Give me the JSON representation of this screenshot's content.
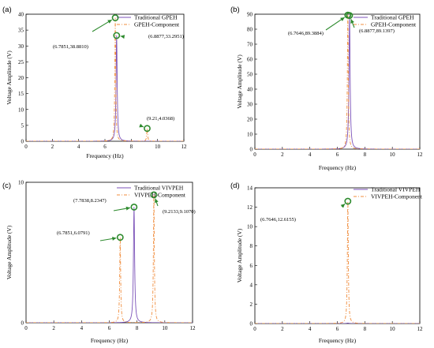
{
  "colors": {
    "traditional": "#7b52b8",
    "component": "#f08c3c",
    "marker": "#2d8a2d",
    "axis": "#000000"
  },
  "chart_data": [
    {
      "type": "line",
      "panel_label": "(a)",
      "xlabel": "Frequency (Hz)",
      "ylabel": "Voltage Amplitude (V)",
      "xlim": [
        0,
        12
      ],
      "ylim": [
        0,
        40
      ],
      "xticks": [
        0,
        2,
        4,
        6,
        8,
        10,
        12
      ],
      "yticks": [
        0,
        5,
        10,
        15,
        20,
        25,
        30,
        35,
        40
      ],
      "legend": "top-right",
      "grid": false,
      "series": [
        {
          "name": "Traditional GPEH",
          "style": "solid",
          "color_key": "traditional",
          "peaks": [
            {
              "x": 6.8877,
              "y": 33.2951,
              "w": 0.05
            }
          ]
        },
        {
          "name": "GPEH-Component",
          "style": "dashdot",
          "color_key": "component",
          "peaks": [
            {
              "x": 6.7851,
              "y": 38.881,
              "w": 0.04
            },
            {
              "x": 9.21,
              "y": 4.0368,
              "w": 0.04
            }
          ]
        }
      ],
      "annotations": [
        {
          "text": "(6.7851,38.8810)",
          "x": 6.7851,
          "y": 38.881
        },
        {
          "text": "(6.8877,33.2951)",
          "x": 6.8877,
          "y": 33.2951
        },
        {
          "text": "(9.21,4.0368)",
          "x": 9.21,
          "y": 4.0368
        }
      ]
    },
    {
      "type": "line",
      "panel_label": "(b)",
      "xlabel": "Frequency (Hz)",
      "ylabel": "Voltage Amplitude (V)",
      "xlim": [
        0,
        12
      ],
      "ylim": [
        0,
        90
      ],
      "xticks": [
        0,
        2,
        4,
        6,
        8,
        10,
        12
      ],
      "yticks": [
        0,
        10,
        20,
        30,
        40,
        50,
        60,
        70,
        80,
        90
      ],
      "legend": "top-right",
      "grid": false,
      "series": [
        {
          "name": "Traditional GPEH",
          "style": "solid",
          "color_key": "traditional",
          "peaks": [
            {
              "x": 6.8877,
              "y": 89.1397,
              "w": 0.05
            }
          ]
        },
        {
          "name": "GPEH-Component",
          "style": "dashdot",
          "color_key": "component",
          "peaks": [
            {
              "x": 6.7646,
              "y": 89.3884,
              "w": 0.04
            }
          ]
        }
      ],
      "annotations": [
        {
          "text": "(6.7646,89.3884)",
          "x": 6.7646,
          "y": 89.3884
        },
        {
          "text": "(6.8877,89.1397)",
          "x": 6.8877,
          "y": 89.1397
        }
      ]
    },
    {
      "type": "line",
      "panel_label": "(c)",
      "xlabel": "Frequency (Hz)",
      "ylabel": "Voltage Amplitude (V)",
      "xlim": [
        0,
        12
      ],
      "ylim": [
        0,
        10
      ],
      "xticks": [
        0,
        2,
        4,
        6,
        8,
        10,
        12
      ],
      "yticks": [
        0,
        10
      ],
      "legend": "top-right",
      "grid": false,
      "series": [
        {
          "name": "Traditional VIVPEH",
          "style": "solid",
          "color_key": "traditional",
          "peaks": [
            {
              "x": 7.7838,
              "y": 8.2347,
              "w": 0.05
            }
          ]
        },
        {
          "name": "VIVPEH-Component",
          "style": "dashdot",
          "color_key": "component",
          "peaks": [
            {
              "x": 6.7851,
              "y": 6.0791,
              "w": 0.04
            },
            {
              "x": 9.2133,
              "y": 9.107,
              "w": 0.04
            }
          ]
        }
      ],
      "annotations": [
        {
          "text": "(7.7838,8.2347)",
          "x": 7.7838,
          "y": 8.2347
        },
        {
          "text": "(9.2133,9.1070)",
          "x": 9.2133,
          "y": 9.107
        },
        {
          "text": "(6.7851,6.0791)",
          "x": 6.7851,
          "y": 6.0791
        }
      ]
    },
    {
      "type": "line",
      "panel_label": "(d)",
      "xlabel": "Frequency (Hz)",
      "ylabel": "Voltage Amplitude (V)",
      "xlim": [
        0,
        12
      ],
      "ylim": [
        0,
        14
      ],
      "xticks": [
        0,
        2,
        4,
        6,
        8,
        10,
        12
      ],
      "yticks": [
        0,
        2,
        4,
        6,
        8,
        10,
        12,
        14
      ],
      "legend": "top-right",
      "grid": false,
      "series": [
        {
          "name": "Traditional VIVPEH",
          "style": "solid",
          "color_key": "traditional",
          "peaks": [
            {
              "x": 6.7646,
              "y": 0.05,
              "w": 0.1
            }
          ]
        },
        {
          "name": "VIVPEH-Component",
          "style": "dashdot",
          "color_key": "component",
          "peaks": [
            {
              "x": 6.7646,
              "y": 12.6155,
              "w": 0.04
            }
          ]
        }
      ],
      "annotations": [
        {
          "text": "(6.7646,12.6155)",
          "x": 6.7646,
          "y": 12.6155
        }
      ]
    }
  ]
}
